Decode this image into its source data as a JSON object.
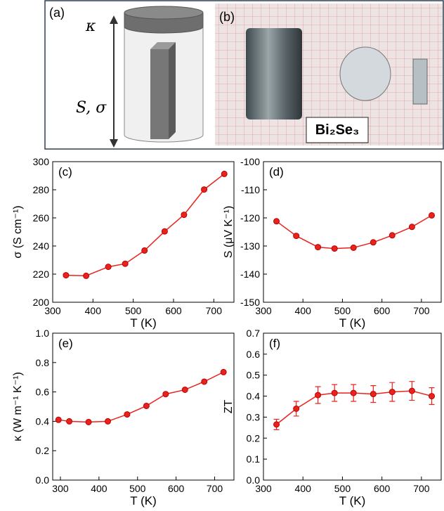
{
  "figure": {
    "panel_a": "(a)",
    "panel_b": "(b)",
    "kappa_label": "κ",
    "s_sigma_label": "S, σ",
    "material": "Bi₂Se₃"
  },
  "chart_data": [
    {
      "type": "line",
      "title": "(c)",
      "x_label": "T (K)",
      "y_label": "σ (S cm⁻¹)",
      "x": [
        333,
        383,
        438,
        480,
        528,
        578,
        626,
        676,
        726
      ],
      "series": [
        {
          "color": "#e8231e",
          "values": [
            219.2,
            218.8,
            225.2,
            227.4,
            236.8,
            250.4,
            262.2,
            280.2,
            291.3
          ]
        }
      ],
      "xlim": [
        300,
        750
      ],
      "xticks": [
        300,
        400,
        500,
        600,
        700
      ],
      "ylim": [
        200,
        300
      ],
      "yticks": [
        200,
        220,
        240,
        260,
        280,
        300
      ]
    },
    {
      "type": "line",
      "title": "(d)",
      "x_label": "T (K)",
      "y_label": "S (μV K⁻¹)",
      "x": [
        333,
        383,
        438,
        480,
        528,
        578,
        626,
        676,
        726
      ],
      "series": [
        {
          "color": "#e8231e",
          "values": [
            -121.2,
            -126.4,
            -130.4,
            -130.9,
            -130.6,
            -128.7,
            -126.2,
            -123.2,
            -119.1
          ]
        }
      ],
      "xlim": [
        300,
        750
      ],
      "xticks": [
        300,
        400,
        500,
        600,
        700
      ],
      "ylim": [
        -150,
        -100
      ],
      "yticks": [
        -150,
        -140,
        -130,
        -120,
        -110,
        -100
      ]
    },
    {
      "type": "line",
      "title": "(e)",
      "x_label": "T (K)",
      "y_label": "κ (W m⁻¹ K⁻¹)",
      "x": [
        295,
        323,
        373,
        423,
        473,
        523,
        573,
        623,
        673,
        723
      ],
      "series": [
        {
          "color": "#e8231e",
          "values": [
            0.41,
            0.4,
            0.395,
            0.4,
            0.447,
            0.505,
            0.585,
            0.615,
            0.67,
            0.735
          ]
        }
      ],
      "xlim": [
        280,
        750
      ],
      "xticks": [
        300,
        400,
        500,
        600,
        700
      ],
      "ylim": [
        0,
        1
      ],
      "yticks": [
        {
          "value": 0,
          "label": "0.0"
        },
        0.2,
        0.4,
        0.6,
        0.8,
        {
          "value": 1,
          "label": "1.0"
        }
      ]
    },
    {
      "type": "line",
      "title": "(f)",
      "x_label": "T (K)",
      "y_label": "ZT",
      "x": [
        333,
        383,
        438,
        480,
        528,
        578,
        626,
        676,
        726
      ],
      "series": [
        {
          "color": "#e8231e",
          "values": [
            0.265,
            0.34,
            0.405,
            0.415,
            0.415,
            0.41,
            0.42,
            0.425,
            0.4
          ],
          "errors": [
            0.025,
            0.035,
            0.04,
            0.04,
            0.04,
            0.04,
            0.045,
            0.045,
            0.04
          ]
        }
      ],
      "xlim": [
        300,
        750
      ],
      "xticks": [
        300,
        400,
        500,
        600,
        700
      ],
      "ylim": [
        0,
        0.7
      ],
      "yticks": [
        {
          "value": 0,
          "label": "0.0"
        },
        0.1,
        0.2,
        0.3,
        0.4,
        0.5,
        0.6,
        0.7
      ]
    }
  ]
}
